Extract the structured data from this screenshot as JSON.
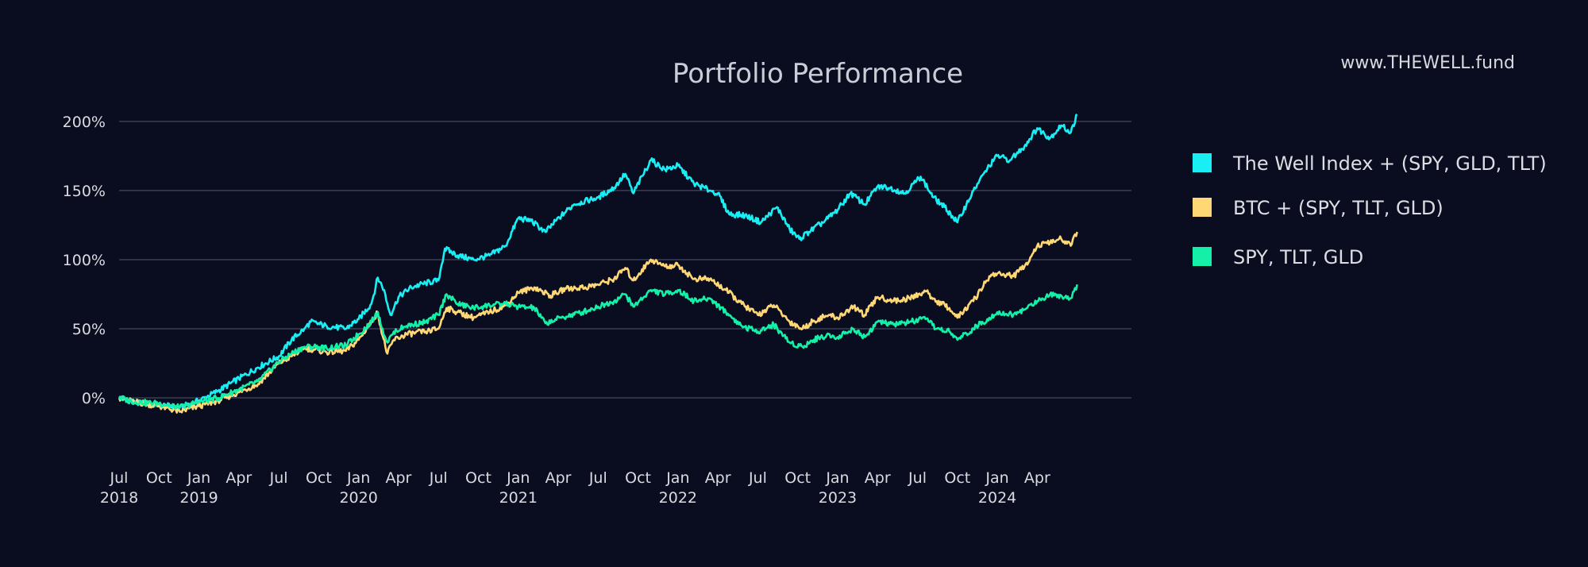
{
  "watermark": "www.THEWELL.fund",
  "chart_data": {
    "type": "line",
    "title": "Portfolio Performance",
    "xlabel": "",
    "ylabel": "",
    "ylim": [
      -35,
      220
    ],
    "yticks": [
      {
        "value": 0,
        "label": "0%"
      },
      {
        "value": 50,
        "label": "50%"
      },
      {
        "value": 100,
        "label": "100%"
      },
      {
        "value": 150,
        "label": "150%"
      },
      {
        "value": 200,
        "label": "200%"
      }
    ],
    "xlim": [
      2018.5,
      2024.84
    ],
    "xticks": [
      {
        "x": 2018.5,
        "label": "Jul",
        "year": "2018"
      },
      {
        "x": 2018.75,
        "label": "Oct",
        "year": ""
      },
      {
        "x": 2019.0,
        "label": "Jan",
        "year": "2019"
      },
      {
        "x": 2019.25,
        "label": "Apr",
        "year": ""
      },
      {
        "x": 2019.5,
        "label": "Jul",
        "year": ""
      },
      {
        "x": 2019.75,
        "label": "Oct",
        "year": ""
      },
      {
        "x": 2020.0,
        "label": "Jan",
        "year": "2020"
      },
      {
        "x": 2020.25,
        "label": "Apr",
        "year": ""
      },
      {
        "x": 2020.5,
        "label": "Jul",
        "year": ""
      },
      {
        "x": 2020.75,
        "label": "Oct",
        "year": ""
      },
      {
        "x": 2021.0,
        "label": "Jan",
        "year": "2021"
      },
      {
        "x": 2021.25,
        "label": "Apr",
        "year": ""
      },
      {
        "x": 2021.5,
        "label": "Jul",
        "year": ""
      },
      {
        "x": 2021.75,
        "label": "Oct",
        "year": ""
      },
      {
        "x": 2022.0,
        "label": "Jan",
        "year": "2022"
      },
      {
        "x": 2022.25,
        "label": "Apr",
        "year": ""
      },
      {
        "x": 2022.5,
        "label": "Jul",
        "year": ""
      },
      {
        "x": 2022.75,
        "label": "Oct",
        "year": ""
      },
      {
        "x": 2023.0,
        "label": "Jan",
        "year": "2023"
      },
      {
        "x": 2023.25,
        "label": "Apr",
        "year": ""
      },
      {
        "x": 2023.5,
        "label": "Jul",
        "year": ""
      },
      {
        "x": 2023.75,
        "label": "Oct",
        "year": ""
      },
      {
        "x": 2024.0,
        "label": "Jan",
        "year": "2024"
      },
      {
        "x": 2024.25,
        "label": "Apr",
        "year": ""
      }
    ],
    "grid": true,
    "legend_position": "right",
    "series": [
      {
        "name": "The Well Index + (SPY, GLD, TLT)",
        "color": "#19eef5",
        "points": [
          [
            2018.5,
            0
          ],
          [
            2018.6,
            -3
          ],
          [
            2018.75,
            -5
          ],
          [
            2018.88,
            -7
          ],
          [
            2019.0,
            -2
          ],
          [
            2019.12,
            5
          ],
          [
            2019.25,
            14
          ],
          [
            2019.37,
            22
          ],
          [
            2019.5,
            30
          ],
          [
            2019.58,
            42
          ],
          [
            2019.66,
            50
          ],
          [
            2019.7,
            55
          ],
          [
            2019.8,
            52
          ],
          [
            2019.92,
            50
          ],
          [
            2020.0,
            57
          ],
          [
            2020.08,
            68
          ],
          [
            2020.12,
            87
          ],
          [
            2020.16,
            78
          ],
          [
            2020.18,
            68
          ],
          [
            2020.2,
            60
          ],
          [
            2020.25,
            73
          ],
          [
            2020.33,
            80
          ],
          [
            2020.42,
            83
          ],
          [
            2020.5,
            85
          ],
          [
            2020.54,
            108
          ],
          [
            2020.62,
            103
          ],
          [
            2020.72,
            100
          ],
          [
            2020.82,
            103
          ],
          [
            2020.92,
            110
          ],
          [
            2021.0,
            130
          ],
          [
            2021.08,
            128
          ],
          [
            2021.17,
            120
          ],
          [
            2021.27,
            132
          ],
          [
            2021.35,
            140
          ],
          [
            2021.5,
            145
          ],
          [
            2021.6,
            152
          ],
          [
            2021.67,
            162
          ],
          [
            2021.72,
            148
          ],
          [
            2021.83,
            172
          ],
          [
            2021.92,
            165
          ],
          [
            2022.0,
            168
          ],
          [
            2022.1,
            155
          ],
          [
            2022.2,
            150
          ],
          [
            2022.25,
            148
          ],
          [
            2022.32,
            133
          ],
          [
            2022.42,
            132
          ],
          [
            2022.52,
            127
          ],
          [
            2022.62,
            138
          ],
          [
            2022.7,
            122
          ],
          [
            2022.76,
            115
          ],
          [
            2022.82,
            120
          ],
          [
            2022.92,
            128
          ],
          [
            2023.0,
            136
          ],
          [
            2023.08,
            148
          ],
          [
            2023.17,
            140
          ],
          [
            2023.25,
            153
          ],
          [
            2023.33,
            152
          ],
          [
            2023.42,
            148
          ],
          [
            2023.52,
            160
          ],
          [
            2023.6,
            145
          ],
          [
            2023.67,
            138
          ],
          [
            2023.75,
            127
          ],
          [
            2023.85,
            150
          ],
          [
            2023.95,
            168
          ],
          [
            2024.0,
            175
          ],
          [
            2024.08,
            172
          ],
          [
            2024.17,
            182
          ],
          [
            2024.25,
            195
          ],
          [
            2024.33,
            188
          ],
          [
            2024.4,
            197
          ],
          [
            2024.46,
            192
          ],
          [
            2024.5,
            205
          ]
        ]
      },
      {
        "name": "BTC + (SPY, TLT, GLD)",
        "color": "#ffd875",
        "points": [
          [
            2018.5,
            0
          ],
          [
            2018.6,
            -3
          ],
          [
            2018.75,
            -6
          ],
          [
            2018.88,
            -10
          ],
          [
            2019.0,
            -6
          ],
          [
            2019.12,
            -2
          ],
          [
            2019.25,
            4
          ],
          [
            2019.37,
            10
          ],
          [
            2019.5,
            25
          ],
          [
            2019.58,
            30
          ],
          [
            2019.66,
            36
          ],
          [
            2019.72,
            35
          ],
          [
            2019.8,
            33
          ],
          [
            2019.92,
            34
          ],
          [
            2020.0,
            42
          ],
          [
            2020.08,
            55
          ],
          [
            2020.12,
            62
          ],
          [
            2020.15,
            45
          ],
          [
            2020.18,
            32
          ],
          [
            2020.22,
            42
          ],
          [
            2020.3,
            46
          ],
          [
            2020.42,
            48
          ],
          [
            2020.5,
            50
          ],
          [
            2020.55,
            65
          ],
          [
            2020.62,
            62
          ],
          [
            2020.72,
            58
          ],
          [
            2020.82,
            62
          ],
          [
            2020.92,
            67
          ],
          [
            2021.0,
            76
          ],
          [
            2021.1,
            80
          ],
          [
            2021.2,
            74
          ],
          [
            2021.3,
            79
          ],
          [
            2021.42,
            80
          ],
          [
            2021.5,
            82
          ],
          [
            2021.6,
            86
          ],
          [
            2021.67,
            94
          ],
          [
            2021.72,
            85
          ],
          [
            2021.83,
            100
          ],
          [
            2021.92,
            95
          ],
          [
            2022.0,
            96
          ],
          [
            2022.1,
            86
          ],
          [
            2022.2,
            86
          ],
          [
            2022.3,
            78
          ],
          [
            2022.4,
            68
          ],
          [
            2022.5,
            60
          ],
          [
            2022.6,
            67
          ],
          [
            2022.7,
            55
          ],
          [
            2022.78,
            50
          ],
          [
            2022.85,
            56
          ],
          [
            2022.95,
            60
          ],
          [
            2023.0,
            58
          ],
          [
            2023.1,
            66
          ],
          [
            2023.17,
            60
          ],
          [
            2023.25,
            73
          ],
          [
            2023.35,
            70
          ],
          [
            2023.45,
            72
          ],
          [
            2023.55,
            77
          ],
          [
            2023.62,
            70
          ],
          [
            2023.7,
            65
          ],
          [
            2023.75,
            58
          ],
          [
            2023.85,
            70
          ],
          [
            2023.95,
            88
          ],
          [
            2024.0,
            90
          ],
          [
            2024.1,
            88
          ],
          [
            2024.17,
            95
          ],
          [
            2024.25,
            110
          ],
          [
            2024.33,
            112
          ],
          [
            2024.4,
            115
          ],
          [
            2024.46,
            110
          ],
          [
            2024.5,
            120
          ]
        ]
      },
      {
        "name": "SPY, TLT, GLD",
        "color": "#14f0a8",
        "points": [
          [
            2018.5,
            0
          ],
          [
            2018.6,
            -3
          ],
          [
            2018.75,
            -4
          ],
          [
            2018.88,
            -7
          ],
          [
            2019.0,
            -3
          ],
          [
            2019.12,
            0
          ],
          [
            2019.25,
            6
          ],
          [
            2019.37,
            12
          ],
          [
            2019.5,
            26
          ],
          [
            2019.58,
            32
          ],
          [
            2019.66,
            37
          ],
          [
            2019.72,
            37
          ],
          [
            2019.8,
            36
          ],
          [
            2019.92,
            38
          ],
          [
            2020.0,
            46
          ],
          [
            2020.08,
            55
          ],
          [
            2020.12,
            62
          ],
          [
            2020.15,
            50
          ],
          [
            2020.18,
            40
          ],
          [
            2020.22,
            48
          ],
          [
            2020.3,
            52
          ],
          [
            2020.42,
            55
          ],
          [
            2020.5,
            60
          ],
          [
            2020.55,
            75
          ],
          [
            2020.62,
            68
          ],
          [
            2020.72,
            65
          ],
          [
            2020.82,
            67
          ],
          [
            2020.92,
            68
          ],
          [
            2021.0,
            66
          ],
          [
            2021.1,
            65
          ],
          [
            2021.17,
            54
          ],
          [
            2021.27,
            58
          ],
          [
            2021.4,
            62
          ],
          [
            2021.5,
            66
          ],
          [
            2021.6,
            70
          ],
          [
            2021.67,
            75
          ],
          [
            2021.72,
            66
          ],
          [
            2021.83,
            78
          ],
          [
            2021.92,
            75
          ],
          [
            2022.0,
            78
          ],
          [
            2022.1,
            70
          ],
          [
            2022.2,
            72
          ],
          [
            2022.3,
            62
          ],
          [
            2022.4,
            52
          ],
          [
            2022.5,
            48
          ],
          [
            2022.6,
            53
          ],
          [
            2022.7,
            40
          ],
          [
            2022.78,
            37
          ],
          [
            2022.85,
            42
          ],
          [
            2022.95,
            46
          ],
          [
            2023.0,
            44
          ],
          [
            2023.1,
            50
          ],
          [
            2023.17,
            44
          ],
          [
            2023.25,
            55
          ],
          [
            2023.35,
            53
          ],
          [
            2023.45,
            55
          ],
          [
            2023.55,
            57
          ],
          [
            2023.62,
            50
          ],
          [
            2023.7,
            48
          ],
          [
            2023.75,
            42
          ],
          [
            2023.85,
            50
          ],
          [
            2023.95,
            58
          ],
          [
            2024.0,
            62
          ],
          [
            2024.1,
            60
          ],
          [
            2024.17,
            64
          ],
          [
            2024.25,
            70
          ],
          [
            2024.33,
            75
          ],
          [
            2024.4,
            74
          ],
          [
            2024.46,
            72
          ],
          [
            2024.5,
            82
          ]
        ]
      }
    ]
  }
}
